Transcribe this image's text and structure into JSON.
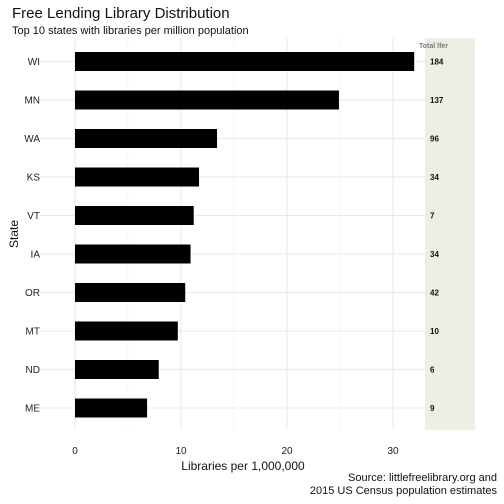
{
  "chart_data": {
    "type": "bar",
    "orientation": "horizontal",
    "title": "Free Lending Library Distribution",
    "subtitle": "Top 10 states with libraries per million population",
    "xlabel": "Libraries per 1,000,000",
    "ylabel": "State",
    "xlim": [
      0,
      33
    ],
    "xticks": [
      0,
      10,
      20,
      30
    ],
    "grid": true,
    "categories": [
      "WI",
      "MN",
      "WA",
      "KS",
      "VT",
      "IA",
      "OR",
      "MT",
      "ND",
      "ME"
    ],
    "values": [
      32.0,
      24.9,
      13.4,
      11.7,
      11.2,
      10.9,
      10.4,
      9.7,
      7.9,
      6.8
    ],
    "totals_header": "Total lfer",
    "totals": [
      184,
      137,
      96,
      34,
      7,
      34,
      42,
      10,
      6,
      9
    ],
    "bar_color": "#000000",
    "panel_color": "#eeeee4",
    "caption_lines": [
      "Source: littlefreelibrary.org and",
      "2015 US Census population estimates"
    ]
  }
}
